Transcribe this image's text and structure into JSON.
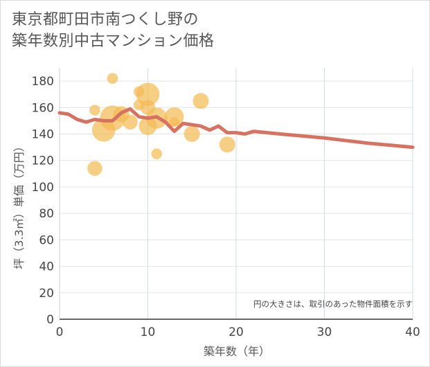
{
  "title_line1": "東京都町田市南つくし野の",
  "title_line2": "築年数別中古マンション価格",
  "chart_data": {
    "type": "scatter",
    "xlabel": "築年数（年）",
    "ylabel": "坪（3.3㎡）単価（万円）",
    "xlim": [
      0,
      40
    ],
    "ylim": [
      0,
      190
    ],
    "x_ticks": [
      0,
      10,
      20,
      30,
      40
    ],
    "y_ticks": [
      0,
      20,
      40,
      60,
      80,
      100,
      120,
      140,
      160,
      180
    ],
    "grid": true,
    "annotation": "円の大きさは、取引のあった物件面積を示す",
    "bubble_color": "#f2bb55",
    "line_color": "#d67262",
    "bubbles": [
      {
        "x": 4,
        "y": 114,
        "size": 0.45
      },
      {
        "x": 4,
        "y": 158,
        "size": 0.25
      },
      {
        "x": 5,
        "y": 143,
        "size": 0.85
      },
      {
        "x": 6,
        "y": 182,
        "size": 0.25
      },
      {
        "x": 6,
        "y": 152,
        "size": 0.95
      },
      {
        "x": 7,
        "y": 155,
        "size": 0.5
      },
      {
        "x": 8,
        "y": 149,
        "size": 0.45
      },
      {
        "x": 9,
        "y": 162,
        "size": 0.25
      },
      {
        "x": 9,
        "y": 172,
        "size": 0.25
      },
      {
        "x": 10,
        "y": 170,
        "size": 0.85
      },
      {
        "x": 10,
        "y": 160,
        "size": 0.45
      },
      {
        "x": 10,
        "y": 146,
        "size": 0.6
      },
      {
        "x": 11,
        "y": 152,
        "size": 0.75
      },
      {
        "x": 11,
        "y": 125,
        "size": 0.25
      },
      {
        "x": 13,
        "y": 153,
        "size": 0.65
      },
      {
        "x": 13,
        "y": 149,
        "size": 0.2
      },
      {
        "x": 15,
        "y": 140,
        "size": 0.5
      },
      {
        "x": 16,
        "y": 165,
        "size": 0.5
      },
      {
        "x": 19,
        "y": 132,
        "size": 0.5
      }
    ],
    "trend_x": [
      0,
      1,
      2,
      3,
      4,
      5,
      6,
      7,
      8,
      9,
      10,
      11,
      12,
      13,
      14,
      15,
      16,
      17,
      18,
      19,
      20,
      21,
      22,
      25,
      30,
      35,
      40
    ],
    "trend_y": [
      156,
      155,
      151,
      149,
      151,
      150,
      150,
      156,
      159,
      153,
      152,
      153,
      149,
      142,
      148,
      147,
      146,
      143,
      146,
      141,
      141,
      140,
      142,
      140,
      137,
      133,
      130
    ]
  }
}
